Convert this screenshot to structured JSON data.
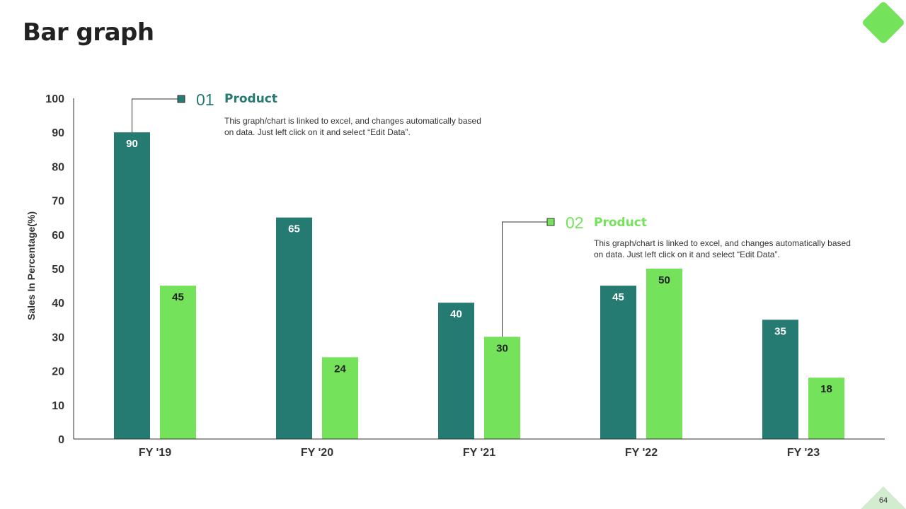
{
  "slide": {
    "title": "Bar graph",
    "page_number": "64"
  },
  "colors": {
    "series1": "#257a71",
    "series2": "#74e35b",
    "axis": "#333333",
    "text": "#333333"
  },
  "callouts": [
    {
      "number": "01",
      "title": "Product",
      "text": "This graph/chart is linked to excel, and changes automatically based on data. Just left click on it and select “Edit Data”."
    },
    {
      "number": "02",
      "title": "Product",
      "text": "This graph/chart is linked to excel, and changes automatically based on data. Just left click on it and select “Edit Data”."
    }
  ],
  "chart_data": {
    "type": "bar",
    "title": "Bar graph",
    "xlabel": "",
    "ylabel": "Sales In Percentage(%)",
    "ylim": [
      0,
      100
    ],
    "yticks": [
      0,
      10,
      20,
      30,
      40,
      50,
      60,
      70,
      80,
      90,
      100
    ],
    "grid": false,
    "categories": [
      "FY '19",
      "FY '20",
      "FY '21",
      "FY '22",
      "FY '23"
    ],
    "series": [
      {
        "name": "Product 01",
        "values": [
          90,
          65,
          40,
          45,
          35
        ]
      },
      {
        "name": "Product 02",
        "values": [
          45,
          24,
          30,
          50,
          18
        ]
      }
    ]
  }
}
